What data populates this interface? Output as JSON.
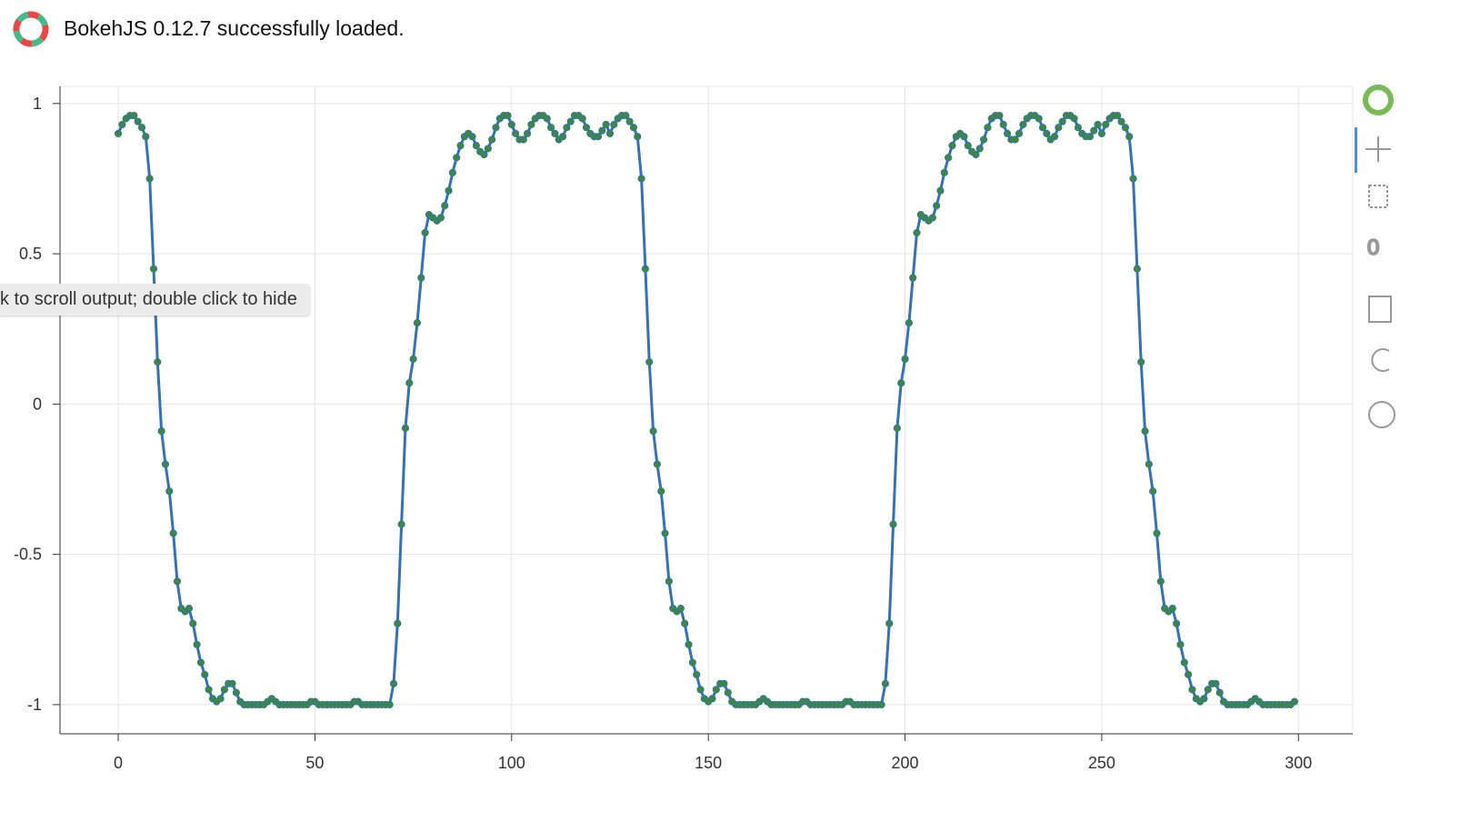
{
  "notice": "BokehJS 0.12.7 successfully loaded.",
  "tooltip": "k to scroll output; double click to hide",
  "chart_data": {
    "type": "line",
    "xlim": [
      -14.8,
      313.8
    ],
    "ylim": [
      -1.097,
      1.057
    ],
    "xticks": [
      0,
      50,
      100,
      150,
      200,
      250,
      300
    ],
    "yticks": [
      -1,
      -0.5,
      0,
      0.5,
      1
    ],
    "grid": true,
    "x": [
      0,
      1,
      2,
      3,
      4,
      5,
      6,
      7,
      8,
      9,
      10,
      11,
      12,
      13,
      14,
      15,
      16,
      17,
      18,
      19,
      20,
      21,
      22,
      23,
      24,
      25,
      26,
      27,
      28,
      29,
      30,
      31,
      32,
      33,
      34,
      35,
      36,
      37,
      38,
      39,
      40,
      41,
      42,
      43,
      44,
      45,
      46,
      47,
      48,
      49,
      50,
      51,
      52,
      53,
      54,
      55,
      56,
      57,
      58,
      59,
      60,
      61,
      62,
      63,
      64,
      65,
      66,
      67,
      68,
      69,
      70,
      71,
      72,
      73,
      74,
      75,
      76,
      77,
      78,
      79,
      80,
      81,
      82,
      83,
      84,
      85,
      86,
      87,
      88,
      89,
      90,
      91,
      92,
      93,
      94,
      95,
      96,
      97,
      98,
      99,
      100,
      101,
      102,
      103,
      104,
      105,
      106,
      107,
      108,
      109,
      110,
      111,
      112,
      113,
      114,
      115,
      116,
      117,
      118,
      119,
      120,
      121,
      122,
      123,
      124,
      125,
      126,
      127,
      128,
      129,
      130,
      131,
      132,
      133,
      134,
      135,
      136,
      137,
      138,
      139,
      140,
      141,
      142,
      143,
      144,
      145,
      146,
      147,
      148,
      149,
      150,
      151,
      152,
      153,
      154,
      155,
      156,
      157,
      158,
      159,
      160,
      161,
      162,
      163,
      164,
      165,
      166,
      167,
      168,
      169,
      170,
      171,
      172,
      173,
      174,
      175,
      176,
      177,
      178,
      179,
      180,
      181,
      182,
      183,
      184,
      185,
      186,
      187,
      188,
      189,
      190,
      191,
      192,
      193,
      194,
      195,
      196,
      197,
      198,
      199,
      200,
      201,
      202,
      203,
      204,
      205,
      206,
      207,
      208,
      209,
      210,
      211,
      212,
      213,
      214,
      215,
      216,
      217,
      218,
      219,
      220,
      221,
      222,
      223,
      224,
      225,
      226,
      227,
      228,
      229,
      230,
      231,
      232,
      233,
      234,
      235,
      236,
      237,
      238,
      239,
      240,
      241,
      242,
      243,
      244,
      245,
      246,
      247,
      248,
      249,
      250,
      251,
      252,
      253,
      254,
      255,
      256,
      257,
      258,
      259,
      260,
      261,
      262,
      263,
      264,
      265,
      266,
      267,
      268,
      269,
      270,
      271,
      272,
      273,
      274,
      275,
      276,
      277,
      278,
      279,
      280,
      281,
      282,
      283,
      284,
      285,
      286,
      287,
      288,
      289,
      290,
      291,
      292,
      293,
      294,
      295,
      296,
      297,
      298,
      299
    ],
    "series": [
      {
        "line_color": "#3471b5",
        "marker_color": "#3a8a3a",
        "values": [
          0.9,
          0.93,
          0.95,
          0.96,
          0.96,
          0.94,
          0.92,
          0.89,
          0.75,
          0.45,
          0.14,
          -0.09,
          -0.2,
          -0.29,
          -0.43,
          -0.59,
          -0.68,
          -0.69,
          -0.68,
          -0.73,
          -0.8,
          -0.86,
          -0.9,
          -0.95,
          -0.98,
          -0.99,
          -0.98,
          -0.95,
          -0.93,
          -0.93,
          -0.96,
          -0.99,
          -1,
          -1,
          -1,
          -1,
          -1,
          -1,
          -0.99,
          -0.98,
          -0.99,
          -1,
          -1,
          -1,
          -1,
          -1,
          -1,
          -1,
          -1,
          -0.99,
          -0.99,
          -1,
          -1,
          -1,
          -1,
          -1,
          -1,
          -1,
          -1,
          -1,
          -0.99,
          -0.99,
          -1,
          -1,
          -1,
          -1,
          -1,
          -1,
          -1,
          -1,
          -0.93,
          -0.73,
          -0.4,
          -0.08,
          0.07,
          0.15,
          0.27,
          0.42,
          0.57,
          0.63,
          0.62,
          0.61,
          0.62,
          0.66,
          0.71,
          0.77,
          0.82,
          0.86,
          0.89,
          0.9,
          0.89,
          0.86,
          0.84,
          0.83,
          0.85,
          0.88,
          0.92,
          0.95,
          0.96,
          0.96,
          0.93,
          0.9,
          0.88,
          0.88,
          0.9,
          0.93,
          0.95,
          0.96,
          0.96,
          0.95,
          0.92,
          0.9,
          0.88,
          0.89,
          0.92,
          0.94,
          0.96,
          0.96,
          0.95,
          0.92,
          0.9,
          0.89,
          0.89,
          0.91,
          0.93,
          0.9,
          0.93,
          0.95,
          0.96,
          0.96,
          0.94,
          0.92,
          0.89,
          0.75,
          0.45,
          0.14,
          -0.09,
          -0.2,
          -0.29,
          -0.43,
          -0.59,
          -0.68,
          -0.69,
          -0.68,
          -0.73,
          -0.8,
          -0.86,
          -0.9,
          -0.95,
          -0.98,
          -0.99,
          -0.98,
          -0.95,
          -0.93,
          -0.93,
          -0.96,
          -0.99,
          -1,
          -1,
          -1,
          -1,
          -1,
          -1,
          -0.99,
          -0.98,
          -0.99,
          -1,
          -1,
          -1,
          -1,
          -1,
          -1,
          -1,
          -1,
          -0.99,
          -0.99,
          -1,
          -1,
          -1,
          -1,
          -1,
          -1,
          -1,
          -1,
          -1,
          -0.99,
          -0.99,
          -1,
          -1,
          -1,
          -1,
          -1,
          -1,
          -1,
          -1,
          -0.93,
          -0.73,
          -0.4,
          -0.08,
          0.07,
          0.15,
          0.27,
          0.42,
          0.57,
          0.63,
          0.62,
          0.61,
          0.62,
          0.66,
          0.71,
          0.77,
          0.82,
          0.86,
          0.89,
          0.9,
          0.89,
          0.86,
          0.84,
          0.83,
          0.85,
          0.88,
          0.92,
          0.95,
          0.96,
          0.96,
          0.93,
          0.9,
          0.88,
          0.88,
          0.9,
          0.93,
          0.95,
          0.96,
          0.96,
          0.95,
          0.92,
          0.9,
          0.88,
          0.89,
          0.92,
          0.94,
          0.96,
          0.96,
          0.95,
          0.92,
          0.9,
          0.89,
          0.89,
          0.91,
          0.93,
          0.9,
          0.93,
          0.95,
          0.96,
          0.96,
          0.94,
          0.92,
          0.89,
          0.75,
          0.45,
          0.14,
          -0.09,
          -0.2,
          -0.29,
          -0.43,
          -0.59,
          -0.68,
          -0.69,
          -0.68,
          -0.73,
          -0.8,
          -0.86,
          -0.9,
          -0.95,
          -0.98,
          -0.99,
          -0.98,
          -0.95,
          -0.93,
          -0.93,
          -0.96,
          -0.99,
          -1,
          -1,
          -1,
          -1,
          -1,
          -1,
          -0.99,
          -0.98,
          -0.99,
          -1,
          -1,
          -1,
          -1,
          -1,
          -1,
          -1,
          -1,
          -0.99
        ]
      }
    ]
  }
}
